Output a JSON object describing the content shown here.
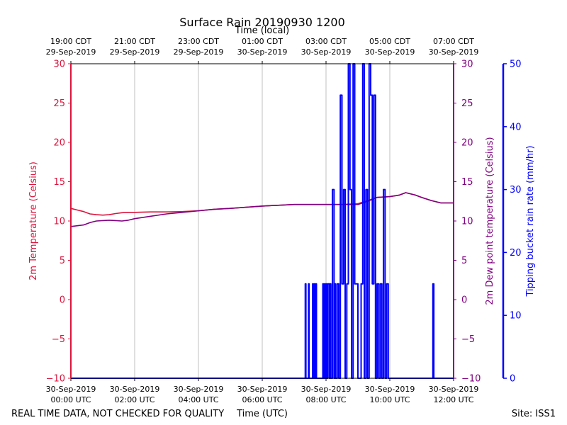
{
  "footer": {
    "left_note": "REAL TIME DATA, NOT CHECKED FOR QUALITY",
    "site": "Site: ISS1"
  },
  "chart_data": {
    "type": "line",
    "title": "Surface Rain 20190930 1200",
    "top_axis_label": "Time (local)",
    "xlabel": "Time (UTC)",
    "x_unit": "hours UTC since 30-Sep-2019 00:00",
    "xlim": [
      0,
      12
    ],
    "bottom_ticks": [
      {
        "x": 0,
        "line1": "30-Sep-2019",
        "line2": "00:00 UTC"
      },
      {
        "x": 2,
        "line1": "30-Sep-2019",
        "line2": "02:00 UTC"
      },
      {
        "x": 4,
        "line1": "30-Sep-2019",
        "line2": "04:00 UTC"
      },
      {
        "x": 6,
        "line1": "30-Sep-2019",
        "line2": "06:00 UTC"
      },
      {
        "x": 8,
        "line1": "30-Sep-2019",
        "line2": "08:00 UTC"
      },
      {
        "x": 10,
        "line1": "30-Sep-2019",
        "line2": "10:00 UTC"
      },
      {
        "x": 12,
        "line1": "30-Sep-2019",
        "line2": "12:00 UTC"
      }
    ],
    "top_ticks": [
      {
        "x": 0,
        "line1": "19:00 CDT",
        "line2": "29-Sep-2019"
      },
      {
        "x": 2,
        "line1": "21:00 CDT",
        "line2": "29-Sep-2019"
      },
      {
        "x": 4,
        "line1": "23:00 CDT",
        "line2": "29-Sep-2019"
      },
      {
        "x": 6,
        "line1": "01:00 CDT",
        "line2": "30-Sep-2019"
      },
      {
        "x": 8,
        "line1": "03:00 CDT",
        "line2": "30-Sep-2019"
      },
      {
        "x": 10,
        "line1": "05:00 CDT",
        "line2": "30-Sep-2019"
      },
      {
        "x": 12,
        "line1": "07:00 CDT",
        "line2": "30-Sep-2019"
      }
    ],
    "grid": "vertical",
    "axes": {
      "left": {
        "label": "2m Temperature (Celsius)",
        "color": "#dc143c",
        "lim": [
          -10,
          30
        ],
        "ticks": [
          -10,
          -5,
          0,
          5,
          10,
          15,
          20,
          25,
          30
        ]
      },
      "right": {
        "label": "2m Dew point temperature (Celsius)",
        "color": "#800080",
        "lim": [
          -10,
          30
        ],
        "ticks": [
          -10,
          -5,
          0,
          5,
          10,
          15,
          20,
          25,
          30
        ]
      },
      "rain": {
        "label": "Tipping bucket rain rate (mm/hr)",
        "color": "#0000ff",
        "lim": [
          0,
          50
        ],
        "ticks": [
          0,
          10,
          20,
          30,
          40,
          50
        ]
      }
    },
    "series": [
      {
        "axis": "left",
        "color": "#dc143c",
        "x": [
          0,
          0.2,
          0.4,
          0.6,
          0.8,
          1.0,
          1.2,
          1.4,
          1.6,
          1.8,
          2.0,
          2.5,
          3.0,
          3.5,
          4.0,
          4.5,
          5.0,
          5.5,
          6.0,
          6.5,
          7.0,
          7.5,
          8.0,
          8.5,
          9.0,
          9.3,
          9.6,
          10.0,
          10.3,
          10.5,
          10.8,
          11.0,
          11.3,
          11.6,
          12.0
        ],
        "y": [
          11.6,
          11.4,
          11.2,
          10.9,
          10.8,
          10.75,
          10.8,
          10.95,
          11.05,
          11.1,
          11.1,
          11.15,
          11.15,
          11.2,
          11.3,
          11.5,
          11.6,
          11.75,
          11.9,
          12.0,
          12.1,
          12.1,
          12.1,
          12.1,
          12.2,
          12.6,
          13.0,
          13.1,
          13.3,
          13.6,
          13.3,
          13.0,
          12.6,
          12.3,
          12.3
        ]
      },
      {
        "axis": "right",
        "color": "#800080",
        "x": [
          0,
          0.2,
          0.4,
          0.6,
          0.8,
          1.0,
          1.2,
          1.4,
          1.6,
          1.8,
          2.0,
          2.5,
          3.0,
          3.5,
          4.0,
          4.5,
          5.0,
          5.5,
          6.0,
          6.5,
          7.0,
          7.5,
          8.0,
          8.5,
          9.0,
          9.3,
          9.6,
          10.0,
          10.3,
          10.5,
          10.8,
          11.0,
          11.3,
          11.6,
          12.0
        ],
        "y": [
          9.3,
          9.4,
          9.5,
          9.8,
          10.0,
          10.05,
          10.1,
          10.05,
          10.0,
          10.1,
          10.3,
          10.6,
          10.9,
          11.1,
          11.3,
          11.5,
          11.6,
          11.75,
          11.9,
          12.0,
          12.1,
          12.1,
          12.1,
          12.1,
          12.1,
          12.5,
          13.0,
          13.1,
          13.3,
          13.6,
          13.3,
          13.0,
          12.6,
          12.3,
          12.3
        ]
      },
      {
        "axis": "rain",
        "color": "#0000ff",
        "x": [
          0,
          7.35,
          7.35,
          7.37,
          7.37,
          7.45,
          7.45,
          7.47,
          7.47,
          7.58,
          7.58,
          7.6,
          7.6,
          7.63,
          7.63,
          7.65,
          7.65,
          7.68,
          7.68,
          7.7,
          7.7,
          7.9,
          7.9,
          7.92,
          7.92,
          7.95,
          7.95,
          7.97,
          7.97,
          8.0,
          8.0,
          8.02,
          8.02,
          8.05,
          8.05,
          8.1,
          8.1,
          8.12,
          8.12,
          8.15,
          8.15,
          8.2,
          8.2,
          8.25,
          8.25,
          8.27,
          8.27,
          8.3,
          8.3,
          8.35,
          8.35,
          8.4,
          8.4,
          8.45,
          8.45,
          8.5,
          8.5,
          8.55,
          8.55,
          8.6,
          8.6,
          8.65,
          8.65,
          8.7,
          8.7,
          8.75,
          8.75,
          8.8,
          8.8,
          8.85,
          8.85,
          8.9,
          8.9,
          9.0,
          9.0,
          9.1,
          9.1,
          9.15,
          9.15,
          9.2,
          9.2,
          9.25,
          9.25,
          9.3,
          9.3,
          9.35,
          9.35,
          9.4,
          9.4,
          9.45,
          9.45,
          9.5,
          9.5,
          9.55,
          9.55,
          9.6,
          9.6,
          9.65,
          9.65,
          9.7,
          9.7,
          9.75,
          9.75,
          9.8,
          9.8,
          9.85,
          9.85,
          9.9,
          9.9,
          9.95,
          9.95,
          11.35,
          11.35,
          11.38,
          11.38,
          12.0
        ],
        "y": [
          0,
          0,
          15,
          15,
          0,
          0,
          15,
          15,
          0,
          0,
          15,
          15,
          0,
          0,
          15,
          15,
          0,
          0,
          15,
          15,
          0,
          0,
          15,
          15,
          0,
          0,
          15,
          15,
          0,
          0,
          15,
          15,
          0,
          0,
          15,
          15,
          0,
          0,
          15,
          15,
          0,
          0,
          30,
          30,
          0,
          0,
          15,
          15,
          0,
          0,
          15,
          15,
          0,
          0,
          45,
          45,
          15,
          15,
          30,
          30,
          0,
          0,
          15,
          15,
          50,
          50,
          30,
          30,
          0,
          0,
          50,
          50,
          15,
          15,
          0,
          0,
          15,
          15,
          50,
          50,
          0,
          0,
          30,
          30,
          0,
          0,
          50,
          50,
          45,
          45,
          15,
          15,
          45,
          45,
          0,
          0,
          15,
          15,
          0,
          0,
          15,
          15,
          0,
          0,
          30,
          30,
          0,
          0,
          15,
          15,
          0,
          0,
          15,
          15,
          0,
          0
        ]
      }
    ]
  }
}
